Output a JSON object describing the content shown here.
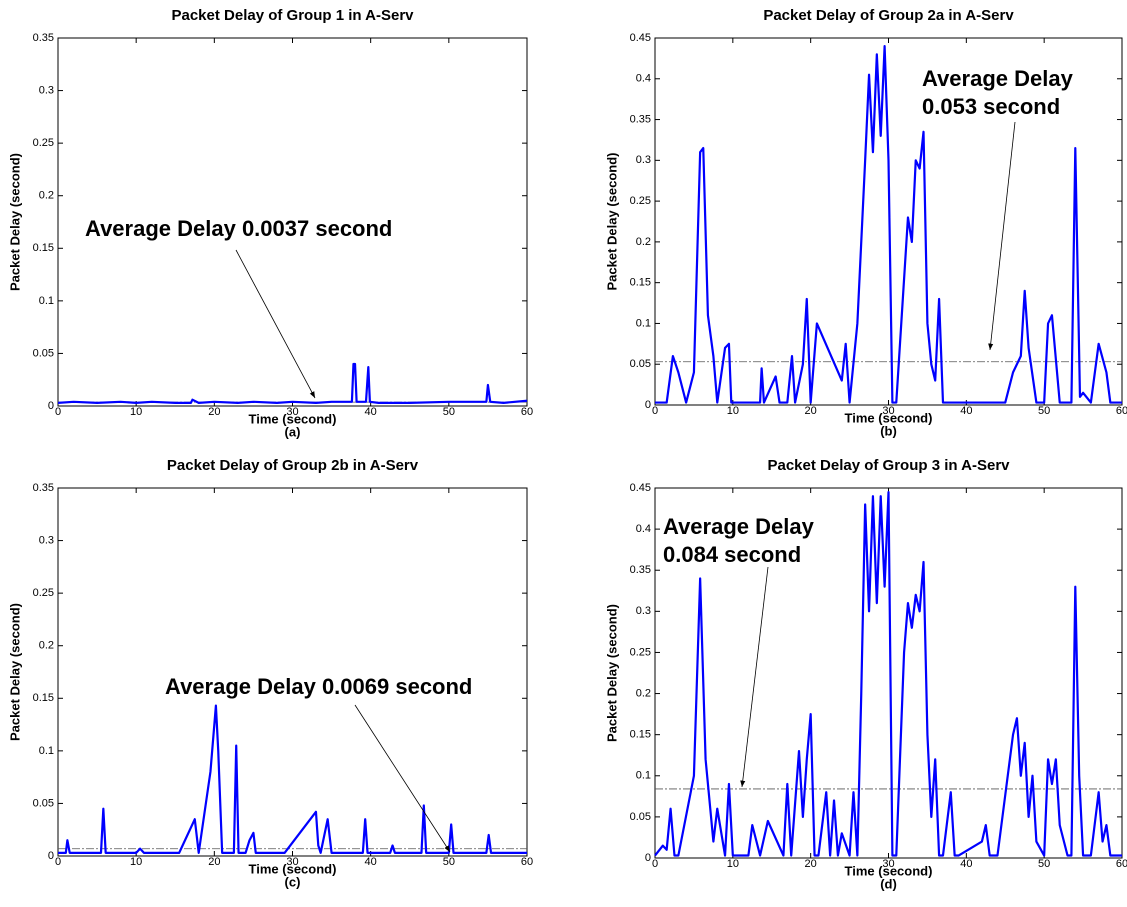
{
  "chart_data": [
    {
      "type": "line",
      "title": "Packet Delay of Group 1 in A-Serv",
      "x_label": "Time (second)",
      "panel_label": "(a)",
      "y_label": "Packet Delay (second)",
      "annotation": [
        "Average Delay 0.0037 second"
      ],
      "average": 0.0037,
      "xlim": [
        0,
        60
      ],
      "xticks": [
        0,
        10,
        20,
        30,
        40,
        50,
        60
      ],
      "ylim": [
        0,
        0.35
      ],
      "yticks": [
        0,
        0.05,
        0.1,
        0.15,
        0.2,
        0.25,
        0.3,
        0.35
      ],
      "grid": false,
      "series": [
        {
          "color": "#0000ff",
          "x": [
            0,
            2,
            5,
            8,
            10,
            12,
            15,
            17,
            17.2,
            18,
            20,
            23,
            25,
            28,
            30,
            33,
            35,
            37.6,
            37.8,
            38,
            38.2,
            39.4,
            39.7,
            39.9,
            41,
            45,
            50,
            54.8,
            55,
            55.3,
            57,
            60
          ],
          "values": [
            0.003,
            0.004,
            0.003,
            0.004,
            0.003,
            0.004,
            0.003,
            0.003,
            0.006,
            0.003,
            0.004,
            0.003,
            0.004,
            0.003,
            0.004,
            0.003,
            0.004,
            0.004,
            0.04,
            0.04,
            0.004,
            0.004,
            0.037,
            0.004,
            0.003,
            0.003,
            0.004,
            0.004,
            0.02,
            0.004,
            0.003,
            0.005
          ]
        }
      ]
    },
    {
      "type": "line",
      "title": "Packet Delay of Group 2a in A-Serv",
      "x_label": "Time (second)",
      "panel_label": "(b)",
      "y_label": "Packet Delay (second)",
      "annotation": [
        "Average Delay",
        "0.053 second"
      ],
      "average": 0.053,
      "xlim": [
        0,
        60
      ],
      "xticks": [
        0,
        10,
        20,
        30,
        40,
        50,
        60
      ],
      "ylim": [
        0,
        0.45
      ],
      "yticks": [
        0,
        0.05,
        0.1,
        0.15,
        0.2,
        0.25,
        0.3,
        0.35,
        0.4,
        0.45
      ],
      "grid": false,
      "series": [
        {
          "color": "#0000ff",
          "x": [
            0,
            1.5,
            2.3,
            3,
            4,
            5,
            5.8,
            6.2,
            6.8,
            7.5,
            8,
            9,
            9.5,
            9.8,
            12,
            13.5,
            13.7,
            14,
            15.5,
            16,
            17,
            17.6,
            18,
            19,
            19.5,
            20,
            20.8,
            24,
            24.5,
            25,
            26,
            27,
            27.5,
            28,
            28.5,
            29,
            29.5,
            30,
            30.5,
            31,
            32.5,
            33,
            33.5,
            34,
            34.5,
            35,
            35.5,
            36,
            36.5,
            37,
            40,
            45,
            46,
            47,
            47.5,
            48,
            49,
            50,
            50.5,
            51,
            52,
            53.5,
            54,
            54.6,
            55,
            56,
            57,
            58,
            58.5,
            60
          ],
          "values": [
            0.003,
            0.003,
            0.06,
            0.04,
            0.003,
            0.04,
            0.31,
            0.315,
            0.11,
            0.06,
            0.003,
            0.07,
            0.075,
            0.003,
            0.003,
            0.003,
            0.045,
            0.003,
            0.035,
            0.003,
            0.003,
            0.06,
            0.003,
            0.05,
            0.13,
            0.003,
            0.1,
            0.03,
            0.075,
            0.003,
            0.1,
            0.3,
            0.405,
            0.31,
            0.43,
            0.33,
            0.44,
            0.3,
            0.003,
            0.003,
            0.23,
            0.2,
            0.3,
            0.29,
            0.335,
            0.1,
            0.05,
            0.03,
            0.13,
            0.003,
            0.003,
            0.003,
            0.04,
            0.06,
            0.14,
            0.07,
            0.003,
            0.003,
            0.1,
            0.11,
            0.003,
            0.003,
            0.315,
            0.01,
            0.015,
            0.003,
            0.075,
            0.04,
            0.003,
            0.003
          ]
        }
      ]
    },
    {
      "type": "line",
      "title": "Packet Delay of Group 2b in A-Serv",
      "x_label": "Time (second)",
      "panel_label": "(c)",
      "y_label": "Packet Delay (second)",
      "annotation": [
        "Average Delay 0.0069 second"
      ],
      "average": 0.0069,
      "xlim": [
        0,
        60
      ],
      "xticks": [
        0,
        10,
        20,
        30,
        40,
        50,
        60
      ],
      "ylim": [
        0,
        0.35
      ],
      "yticks": [
        0,
        0.05,
        0.1,
        0.15,
        0.2,
        0.25,
        0.3,
        0.35
      ],
      "grid": false,
      "series": [
        {
          "color": "#0000ff",
          "x": [
            0,
            1,
            1.2,
            1.5,
            5.5,
            5.8,
            6.1,
            10,
            10.5,
            11,
            15.5,
            17.5,
            18,
            19.5,
            20.2,
            20.5,
            21,
            22.5,
            22.8,
            23.1,
            24,
            24.5,
            25,
            25.3,
            29,
            33,
            33.3,
            33.6,
            34.5,
            35,
            39,
            39.3,
            39.6,
            42.5,
            42.8,
            43.1,
            46.5,
            46.8,
            47.1,
            50,
            50.3,
            50.6,
            54.8,
            55.1,
            55.4,
            60
          ],
          "values": [
            0.003,
            0.003,
            0.015,
            0.003,
            0.003,
            0.045,
            0.003,
            0.003,
            0.007,
            0.003,
            0.003,
            0.035,
            0.003,
            0.08,
            0.143,
            0.1,
            0.003,
            0.003,
            0.105,
            0.003,
            0.003,
            0.015,
            0.022,
            0.003,
            0.003,
            0.042,
            0.01,
            0.003,
            0.035,
            0.003,
            0.003,
            0.035,
            0.003,
            0.003,
            0.01,
            0.003,
            0.003,
            0.048,
            0.003,
            0.003,
            0.03,
            0.003,
            0.003,
            0.02,
            0.003,
            0.003
          ]
        }
      ]
    },
    {
      "type": "line",
      "title": "Packet Delay of Group 3 in A-Serv",
      "x_label": "Time (second)",
      "panel_label": "(d)",
      "y_label": "Packet Delay (second)",
      "annotation": [
        "Average Delay",
        "0.084 second"
      ],
      "average": 0.084,
      "xlim": [
        0,
        60
      ],
      "xticks": [
        0,
        10,
        20,
        30,
        40,
        50,
        60
      ],
      "ylim": [
        0,
        0.45
      ],
      "yticks": [
        0,
        0.05,
        0.1,
        0.15,
        0.2,
        0.25,
        0.3,
        0.35,
        0.4,
        0.45
      ],
      "grid": false,
      "series": [
        {
          "color": "#0000ff",
          "x": [
            0,
            1,
            1.5,
            2,
            2.5,
            3,
            5,
            5.8,
            6.5,
            7.5,
            8,
            9,
            9.5,
            10,
            12,
            12.5,
            13.5,
            14.5,
            16.5,
            17,
            17.5,
            18.5,
            19,
            19.5,
            20,
            20.5,
            21,
            22,
            22.5,
            23,
            23.5,
            24,
            25,
            25.5,
            26,
            26.5,
            27,
            27.5,
            28,
            28.5,
            29,
            29.5,
            30,
            30.5,
            31,
            32,
            32.5,
            33,
            33.5,
            34,
            34.5,
            35,
            35.5,
            36,
            36.5,
            37,
            38,
            38.5,
            39,
            42,
            42.5,
            43,
            44,
            46,
            46.5,
            47,
            47.5,
            48,
            48.5,
            49,
            50,
            50.5,
            51,
            51.5,
            52,
            53,
            53.5,
            54,
            54.5,
            55,
            56,
            57,
            57.5,
            58,
            58.5,
            59,
            60
          ],
          "values": [
            0.003,
            0.015,
            0.01,
            0.06,
            0.003,
            0.003,
            0.1,
            0.34,
            0.12,
            0.02,
            0.06,
            0.003,
            0.09,
            0.003,
            0.003,
            0.04,
            0.003,
            0.045,
            0.003,
            0.09,
            0.003,
            0.13,
            0.05,
            0.12,
            0.175,
            0.003,
            0.003,
            0.08,
            0.003,
            0.07,
            0.003,
            0.03,
            0.003,
            0.08,
            0.003,
            0.2,
            0.43,
            0.3,
            0.44,
            0.31,
            0.44,
            0.33,
            0.445,
            0.003,
            0.003,
            0.25,
            0.31,
            0.28,
            0.32,
            0.3,
            0.36,
            0.15,
            0.05,
            0.12,
            0.003,
            0.003,
            0.08,
            0.003,
            0.003,
            0.02,
            0.04,
            0.003,
            0.003,
            0.15,
            0.17,
            0.1,
            0.14,
            0.05,
            0.1,
            0.02,
            0.003,
            0.12,
            0.09,
            0.12,
            0.04,
            0.003,
            0.003,
            0.33,
            0.1,
            0.003,
            0.003,
            0.08,
            0.02,
            0.04,
            0.003,
            0.003,
            0.003
          ]
        }
      ]
    }
  ]
}
